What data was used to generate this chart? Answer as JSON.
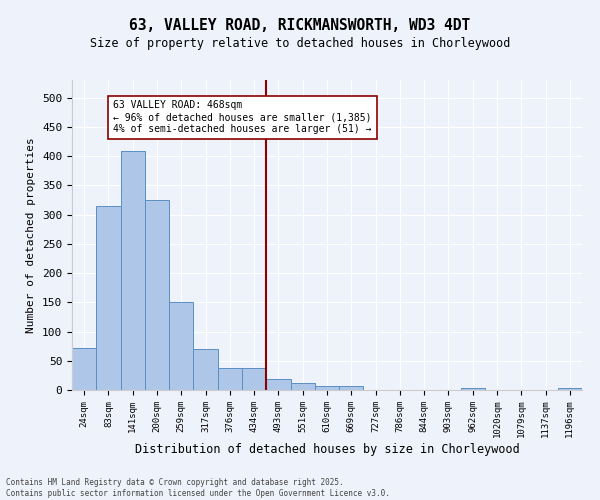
{
  "title": "63, VALLEY ROAD, RICKMANSWORTH, WD3 4DT",
  "subtitle": "Size of property relative to detached houses in Chorleywood",
  "xlabel": "Distribution of detached houses by size in Chorleywood",
  "ylabel": "Number of detached properties",
  "bar_labels": [
    "24sqm",
    "83sqm",
    "141sqm",
    "200sqm",
    "259sqm",
    "317sqm",
    "376sqm",
    "434sqm",
    "493sqm",
    "551sqm",
    "610sqm",
    "669sqm",
    "727sqm",
    "786sqm",
    "844sqm",
    "903sqm",
    "962sqm",
    "1020sqm",
    "1079sqm",
    "1137sqm",
    "1196sqm"
  ],
  "bar_values": [
    72,
    314,
    408,
    325,
    150,
    70,
    38,
    37,
    19,
    12,
    6,
    6,
    0,
    0,
    0,
    0,
    3,
    0,
    0,
    0,
    4
  ],
  "bar_color": "#aec6e8",
  "bar_edge_color": "#5a8fc2",
  "vline_x": 7.5,
  "vline_color": "#8b0000",
  "annotation_text": "63 VALLEY ROAD: 468sqm\n← 96% of detached houses are smaller (1,385)\n4% of semi-detached houses are larger (51) →",
  "annotation_box_color": "#ffffff",
  "annotation_border_color": "#8b0000",
  "footer": "Contains HM Land Registry data © Crown copyright and database right 2025.\nContains public sector information licensed under the Open Government Licence v3.0.",
  "bg_color": "#eef2fa",
  "plot_bg_color": "#eef2fa",
  "ylim": [
    0,
    530
  ],
  "yticks": [
    0,
    50,
    100,
    150,
    200,
    250,
    300,
    350,
    400,
    450,
    500
  ]
}
